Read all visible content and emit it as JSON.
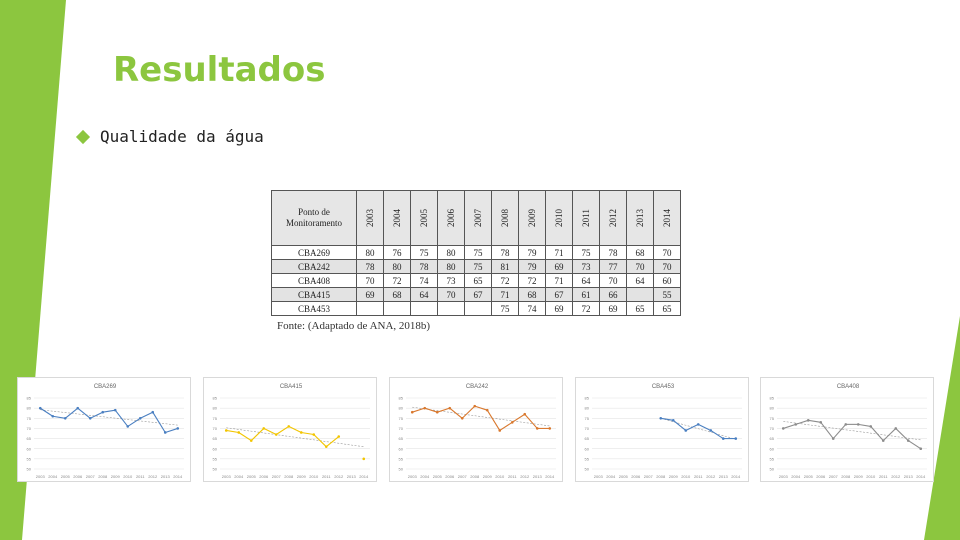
{
  "title": "Resultados",
  "bullet": "Qualidade da água",
  "theme": {
    "accent": "#8cc63f",
    "bullet_icon": "diamond-icon"
  },
  "table": {
    "headers": [
      "Ponto de Monitoramento",
      "2003",
      "2004",
      "2005",
      "2006",
      "2007",
      "2008",
      "2009",
      "2010",
      "2011",
      "2012",
      "2013",
      "2014"
    ],
    "rows": [
      [
        "CBA269",
        "80",
        "76",
        "75",
        "80",
        "75",
        "78",
        "79",
        "71",
        "75",
        "78",
        "68",
        "70"
      ],
      [
        "CBA242",
        "78",
        "80",
        "78",
        "80",
        "75",
        "81",
        "79",
        "69",
        "73",
        "77",
        "70",
        "70"
      ],
      [
        "CBA408",
        "70",
        "72",
        "74",
        "73",
        "65",
        "72",
        "72",
        "71",
        "64",
        "70",
        "64",
        "60"
      ],
      [
        "CBA415",
        "69",
        "68",
        "64",
        "70",
        "67",
        "71",
        "68",
        "67",
        "61",
        "66",
        "",
        "55"
      ],
      [
        "CBA453",
        "",
        "",
        "",
        "",
        "",
        "75",
        "74",
        "69",
        "72",
        "69",
        "65",
        "65"
      ]
    ],
    "caption": "Fonte: (Adaptado de ANA, 2018b)"
  },
  "chart_data": [
    {
      "type": "line",
      "title": "CBA269",
      "color": "#4a7fc1",
      "trendline": true,
      "x": [
        "2003",
        "2004",
        "2005",
        "2006",
        "2007",
        "2008",
        "2009",
        "2010",
        "2011",
        "2012",
        "2013",
        "2014"
      ],
      "values": [
        80,
        76,
        75,
        80,
        75,
        78,
        79,
        71,
        75,
        78,
        68,
        70
      ],
      "ylim": [
        50,
        85
      ],
      "yticks": [
        "50",
        "55",
        "60",
        "65",
        "70",
        "75",
        "80",
        "85"
      ],
      "legend": "none"
    },
    {
      "type": "line",
      "title": "CBA415",
      "color": "#f2c500",
      "trendline": true,
      "x": [
        "2003",
        "2004",
        "2005",
        "2006",
        "2007",
        "2008",
        "2009",
        "2010",
        "2011",
        "2012",
        "2013",
        "2014"
      ],
      "values": [
        69,
        68,
        64,
        70,
        67,
        71,
        68,
        67,
        61,
        66,
        null,
        55
      ],
      "ylim": [
        50,
        85
      ],
      "yticks": [
        "50",
        "55",
        "60",
        "65",
        "70",
        "75",
        "80",
        "85"
      ],
      "legend": "none"
    },
    {
      "type": "line",
      "title": "CBA242",
      "color": "#d9782d",
      "trendline": true,
      "x": [
        "2003",
        "2004",
        "2005",
        "2006",
        "2007",
        "2008",
        "2009",
        "2010",
        "2011",
        "2012",
        "2013",
        "2014"
      ],
      "values": [
        78,
        80,
        78,
        80,
        75,
        81,
        79,
        69,
        73,
        77,
        70,
        70
      ],
      "ylim": [
        50,
        85
      ],
      "yticks": [
        "50",
        "55",
        "60",
        "65",
        "70",
        "75",
        "80",
        "85"
      ],
      "legend": "none"
    },
    {
      "type": "line",
      "title": "CBA453",
      "color": "#4a7fc1",
      "trendline": true,
      "x": [
        "2003",
        "2004",
        "2005",
        "2006",
        "2007",
        "2008",
        "2009",
        "2010",
        "2011",
        "2012",
        "2013",
        "2014"
      ],
      "values": [
        null,
        null,
        null,
        null,
        null,
        75,
        74,
        69,
        72,
        69,
        65,
        65
      ],
      "ylim": [
        50,
        85
      ],
      "yticks": [
        "50",
        "55",
        "60",
        "65",
        "70",
        "75",
        "80",
        "85"
      ],
      "legend": "none"
    },
    {
      "type": "line",
      "title": "CBA408",
      "color": "#8c8c8c",
      "trendline": true,
      "x": [
        "2003",
        "2004",
        "2005",
        "2006",
        "2007",
        "2008",
        "2009",
        "2010",
        "2011",
        "2012",
        "2013",
        "2014"
      ],
      "values": [
        70,
        72,
        74,
        73,
        65,
        72,
        72,
        71,
        64,
        70,
        64,
        60
      ],
      "ylim": [
        50,
        85
      ],
      "yticks": [
        "50",
        "55",
        "60",
        "65",
        "70",
        "75",
        "80",
        "85"
      ],
      "legend": "none"
    }
  ]
}
